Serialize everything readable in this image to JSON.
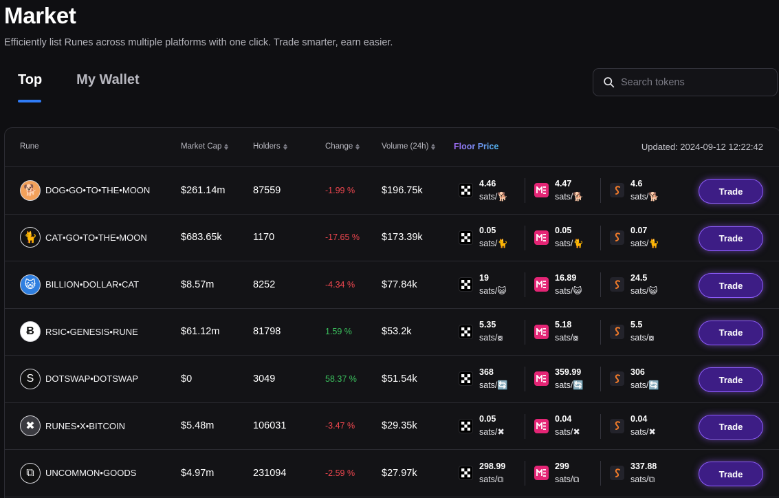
{
  "page": {
    "title": "Market",
    "subtitle": "Efficiently list Runes across multiple platforms with one click. Trade smarter, earn easier."
  },
  "tabs": [
    {
      "label": "Top",
      "active": true
    },
    {
      "label": "My Wallet",
      "active": false
    }
  ],
  "search": {
    "placeholder": "Search tokens",
    "value": ""
  },
  "table": {
    "headers": {
      "rune": "Rune",
      "market_cap": "Market Cap",
      "holders": "Holders",
      "change": "Change",
      "volume": "Volume (24h)",
      "floor_price": "Floor Price"
    },
    "updated": "Updated: 2024-09-12 12:22:42",
    "trade_label": "Trade",
    "markets": [
      "okx",
      "magic-eden",
      "satosea"
    ],
    "rows": [
      {
        "icon": "dog-icon",
        "glyph": "🐕",
        "name": "DOG•GO•TO•THE•MOON",
        "market_cap": "$261.14m",
        "holders": "87559",
        "change": "-1.99 %",
        "direction": "neg",
        "volume": "$196.75k",
        "floor": [
          {
            "price": "4.46",
            "unit": "sats/🐕"
          },
          {
            "price": "4.47",
            "unit": "sats/🐕"
          },
          {
            "price": "4.6",
            "unit": "sats/🐕"
          }
        ]
      },
      {
        "icon": "cat-icon",
        "glyph": "🐈",
        "name": "CAT•GO•TO•THE•MOON",
        "market_cap": "$683.65k",
        "holders": "1170",
        "change": "-17.65 %",
        "direction": "neg",
        "volume": "$173.39k",
        "floor": [
          {
            "price": "0.05",
            "unit": "sats/🐈"
          },
          {
            "price": "0.05",
            "unit": "sats/🐈"
          },
          {
            "price": "0.07",
            "unit": "sats/🐈"
          }
        ]
      },
      {
        "icon": "cat-glasses-icon",
        "glyph": "😺",
        "name": "BILLION•DOLLAR•CAT",
        "market_cap": "$8.57m",
        "holders": "8252",
        "change": "-4.34 %",
        "direction": "neg",
        "volume": "$77.84k",
        "floor": [
          {
            "price": "19",
            "unit": "sats/😺"
          },
          {
            "price": "16.89",
            "unit": "sats/😺"
          },
          {
            "price": "24.5",
            "unit": "sats/😺"
          }
        ]
      },
      {
        "icon": "rsic-icon",
        "glyph": "Ƀ",
        "name": "RSIC•GENESIS•RUNE",
        "market_cap": "$61.12m",
        "holders": "81798",
        "change": "1.59 %",
        "direction": "pos",
        "volume": "$53.2k",
        "floor": [
          {
            "price": "5.35",
            "unit": "sats/⧇"
          },
          {
            "price": "5.18",
            "unit": "sats/⧇"
          },
          {
            "price": "5.5",
            "unit": "sats/⧇"
          }
        ]
      },
      {
        "icon": "dotswap-icon",
        "glyph": "S",
        "name": "DOTSWAP•DOTSWAP",
        "market_cap": "$0",
        "holders": "3049",
        "change": "58.37 %",
        "direction": "pos",
        "volume": "$51.54k",
        "floor": [
          {
            "price": "368",
            "unit": "sats/🔄"
          },
          {
            "price": "359.99",
            "unit": "sats/🔄"
          },
          {
            "price": "306",
            "unit": "sats/🔄"
          }
        ]
      },
      {
        "icon": "runes-x-icon",
        "glyph": "✖",
        "name": "RUNES•X•BITCOIN",
        "market_cap": "$5.48m",
        "holders": "106031",
        "change": "-3.47 %",
        "direction": "neg",
        "volume": "$29.35k",
        "floor": [
          {
            "price": "0.05",
            "unit": "sats/✖"
          },
          {
            "price": "0.04",
            "unit": "sats/✖"
          },
          {
            "price": "0.04",
            "unit": "sats/✖"
          }
        ]
      },
      {
        "icon": "uncommon-goods-icon",
        "glyph": "⧉",
        "name": "UNCOMMON•GOODS",
        "market_cap": "$4.97m",
        "holders": "231094",
        "change": "-2.59 %",
        "direction": "neg",
        "volume": "$27.97k",
        "floor": [
          {
            "price": "298.99",
            "unit": "sats/⧉"
          },
          {
            "price": "299",
            "unit": "sats/⧉"
          },
          {
            "price": "337.88",
            "unit": "sats/⧉"
          }
        ]
      }
    ]
  },
  "colors": {
    "accent": "#2f7bf6",
    "trade_bg": "#3d1d85",
    "trade_border": "#8c5cf8",
    "negative": "#f0474f",
    "positive": "#3bc25e",
    "magic_eden": "#e42575"
  }
}
